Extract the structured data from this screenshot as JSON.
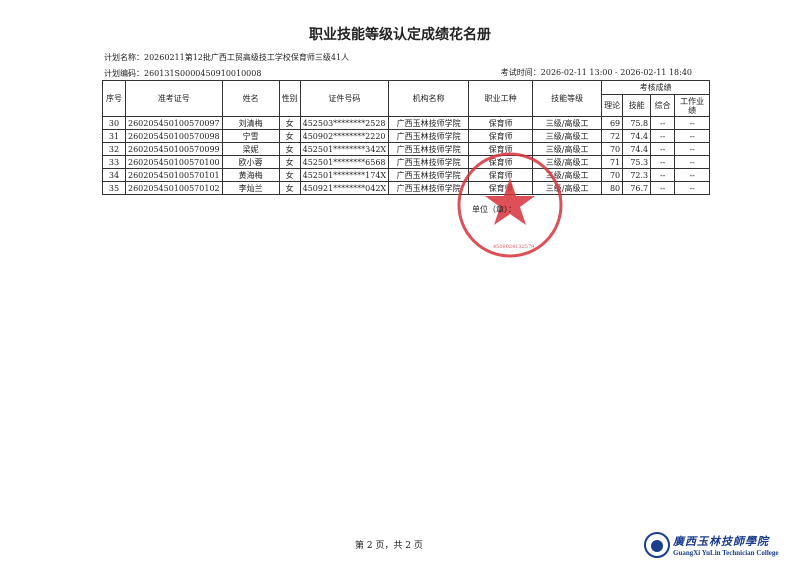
{
  "title": "职业技能等级认定成绩花名册",
  "plan_name": "计划名称：20260211第12批广西工贸高级技工学校保育师三级41人",
  "plan_code": "计划编码：260131S0000450910010008",
  "exam_time": "考试时间：2026-02-11 13:00 - 2026-02-11 18:40",
  "headers": {
    "seq": "序号",
    "ticket": "准考证号",
    "name": "姓名",
    "gender": "性别",
    "id": "证件号码",
    "org": "机构名称",
    "job": "职业工种",
    "level": "技能等级",
    "scores": "考核成绩",
    "theory": "理论",
    "skill": "技能",
    "overall": "综合",
    "work": "工作业绩"
  },
  "rows": [
    {
      "seq": "30",
      "ticket": "260205450100570097",
      "name": "刘清梅",
      "gender": "女",
      "id": "452503********2528",
      "org": "广西玉林技师学院",
      "job": "保育师",
      "level": "三级/高级工",
      "theory": "69",
      "skill": "75.8",
      "overall": "--",
      "work": "--"
    },
    {
      "seq": "31",
      "ticket": "260205450100570098",
      "name": "宁雪",
      "gender": "女",
      "id": "450902********2220",
      "org": "广西玉林技师学院",
      "job": "保育师",
      "level": "三级/高级工",
      "theory": "72",
      "skill": "74.4",
      "overall": "--",
      "work": "--"
    },
    {
      "seq": "32",
      "ticket": "260205450100570099",
      "name": "梁妮",
      "gender": "女",
      "id": "452501********342X",
      "org": "广西玉林技师学院",
      "job": "保育师",
      "level": "三级/高级工",
      "theory": "70",
      "skill": "74.4",
      "overall": "--",
      "work": "--"
    },
    {
      "seq": "33",
      "ticket": "260205450100570100",
      "name": "欧小蓉",
      "gender": "女",
      "id": "452501********6568",
      "org": "广西玉林技师学院",
      "job": "保育师",
      "level": "三级/高级工",
      "theory": "71",
      "skill": "75.3",
      "overall": "--",
      "work": "--"
    },
    {
      "seq": "34",
      "ticket": "260205450100570101",
      "name": "黄海梅",
      "gender": "女",
      "id": "452501********174X",
      "org": "广西玉林技师学院",
      "job": "保育师",
      "level": "三级/高级工",
      "theory": "70",
      "skill": "72.3",
      "overall": "--",
      "work": "--"
    },
    {
      "seq": "35",
      "ticket": "260205450100570102",
      "name": "李灿兰",
      "gender": "女",
      "id": "450921********042X",
      "org": "广西玉林技师学院",
      "job": "保育师",
      "level": "三级/高级工",
      "theory": "80",
      "skill": "76.7",
      "overall": "--",
      "work": "--"
    }
  ],
  "seal_label": "单位（章）：",
  "seal_text": "广西玉林技师学院",
  "seal_number": "4509024132579",
  "footer": "第 2 页，共 2 页",
  "logo": {
    "name": "廣西玉林技師學院",
    "en": "GuangXi YuLin Technician College"
  },
  "colors": {
    "seal": "#d8323a",
    "logo": "#1a3d8f"
  }
}
